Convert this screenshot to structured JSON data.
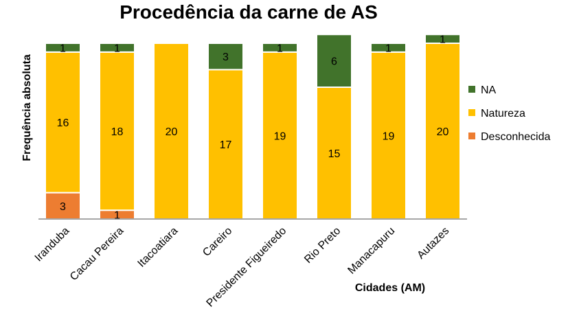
{
  "chart_data": {
    "type": "bar",
    "stacked": true,
    "title": "Procedência da carne de AS",
    "xlabel": "Cidades (AM)",
    "ylabel": "Frequência absoluta",
    "categories": [
      "Iranduba",
      "Cacau Pereira",
      "Itacoatiara",
      "Careiro",
      "Presidente Figueiredo",
      "Rio Preto",
      "Manacapuru",
      "Autazes"
    ],
    "series": [
      {
        "name": "Desconhecida",
        "color": "#ED7D31",
        "values": [
          3,
          1,
          0,
          0,
          0,
          0,
          0,
          0
        ]
      },
      {
        "name": "Natureza",
        "color": "#FFC000",
        "values": [
          16,
          18,
          20,
          17,
          19,
          15,
          19,
          20
        ]
      },
      {
        "name": "NA",
        "color": "#41732B",
        "values": [
          1,
          1,
          0,
          3,
          1,
          6,
          1,
          1
        ]
      }
    ],
    "ylim": [
      0,
      21
    ],
    "grid": false,
    "legend_position": "right"
  }
}
